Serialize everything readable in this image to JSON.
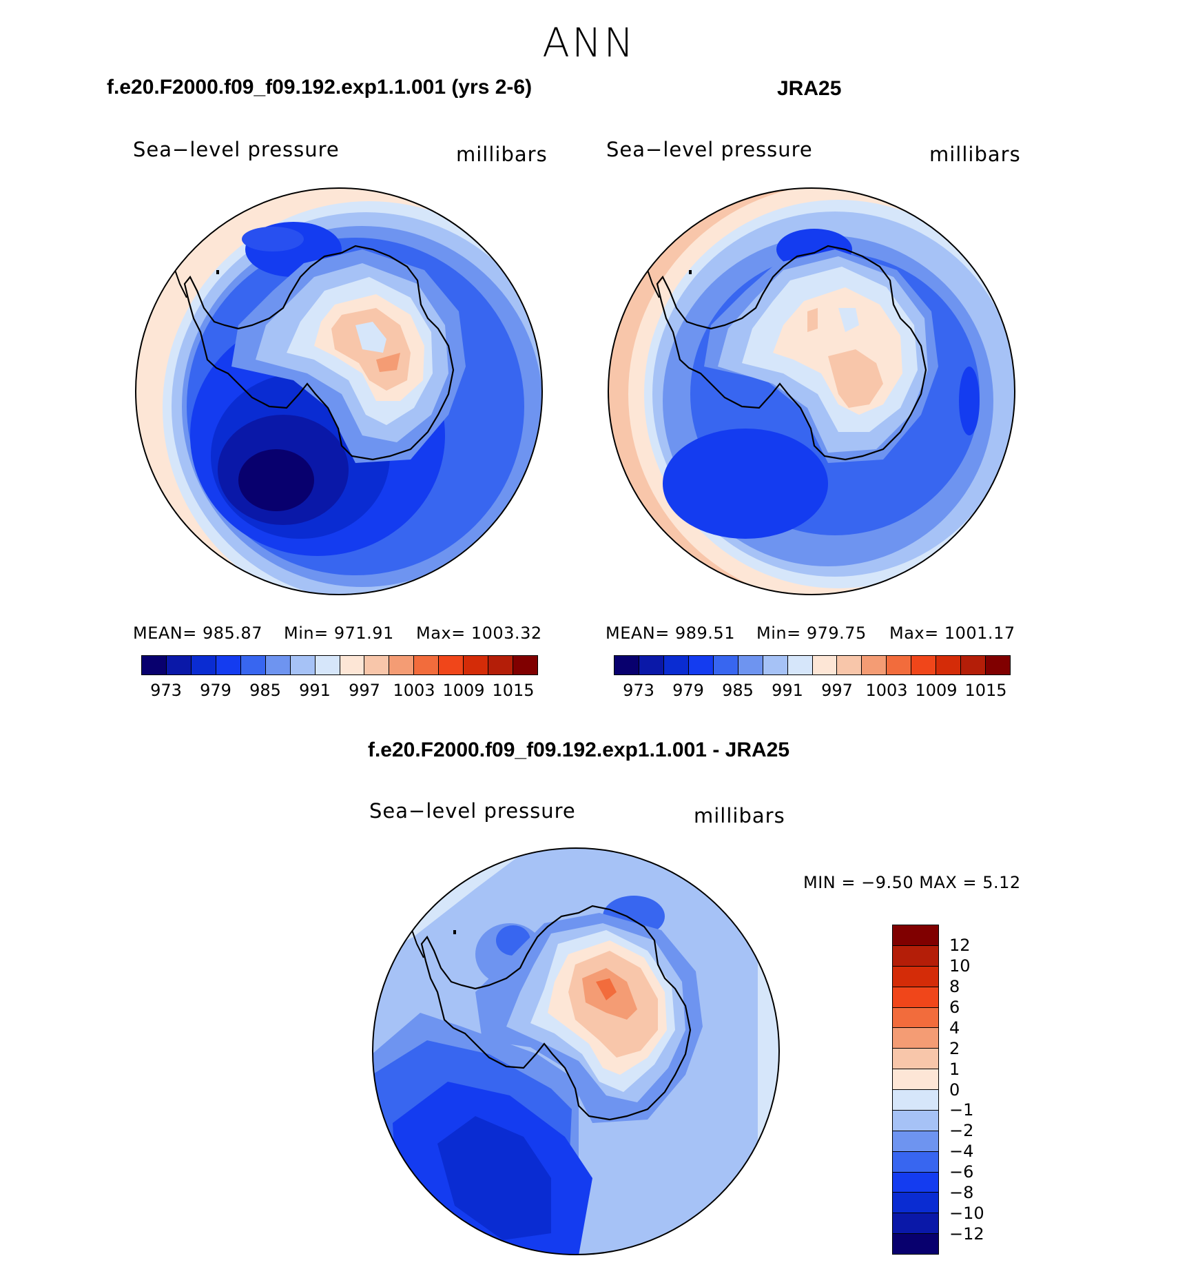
{
  "figure": {
    "title": "ANN",
    "diff_title": "f.e20.F2000.f09_f09.192.exp1.1.001 - JRA25"
  },
  "panels": [
    {
      "title": "f.e20.F2000.f09_f09.192.exp1.1.001 (yrs 2-6)",
      "variable": "Sea−level pressure",
      "units": "millibars",
      "mean_label": "MEAN=  985.87",
      "min_label": "Min=  971.91",
      "max_label": "Max=  1003.32",
      "mean": 985.87,
      "min": 971.91,
      "max": 1003.32
    },
    {
      "title": "JRA25",
      "variable": "Sea−level pressure",
      "units": "millibars",
      "mean_label": "MEAN=  989.51",
      "min_label": "Min=  979.75",
      "max_label": "Max=  1001.17",
      "mean": 989.51,
      "min": 979.75,
      "max": 1001.17
    }
  ],
  "diff_panel": {
    "variable": "Sea−level pressure",
    "units": "millibars",
    "minmax_label": "MIN =    −9.50  MAX =      5.12",
    "min": -9.5,
    "max": 5.12
  },
  "colorbar_abs": {
    "colors": [
      "#08006e",
      "#0a18a8",
      "#0a2cd2",
      "#143cf0",
      "#3866f0",
      "#6e94f0",
      "#a6c2f6",
      "#d6e6fa",
      "#fde6d6",
      "#f8c6aa",
      "#f49c74",
      "#f26c3c",
      "#f0461a",
      "#d42c08",
      "#b41e08",
      "#800000"
    ],
    "tick_labels": [
      "973",
      "979",
      "985",
      "991",
      "997",
      "1003",
      "1009",
      "1015"
    ]
  },
  "colorbar_diff": {
    "colors_top_to_bottom": [
      "#800000",
      "#b41e08",
      "#d42c08",
      "#f0461a",
      "#f26c3c",
      "#f49c74",
      "#f8c6aa",
      "#fde6d6",
      "#d6e6fa",
      "#a6c2f6",
      "#6e94f0",
      "#3866f0",
      "#143cf0",
      "#0a2cd2",
      "#0a18a8",
      "#08006e"
    ],
    "tick_labels_top_to_bottom": [
      "12",
      "10",
      "8",
      "6",
      "4",
      "2",
      "1",
      "0",
      "−1",
      "−2",
      "−4",
      "−6",
      "−8",
      "−10",
      "−12"
    ]
  }
}
